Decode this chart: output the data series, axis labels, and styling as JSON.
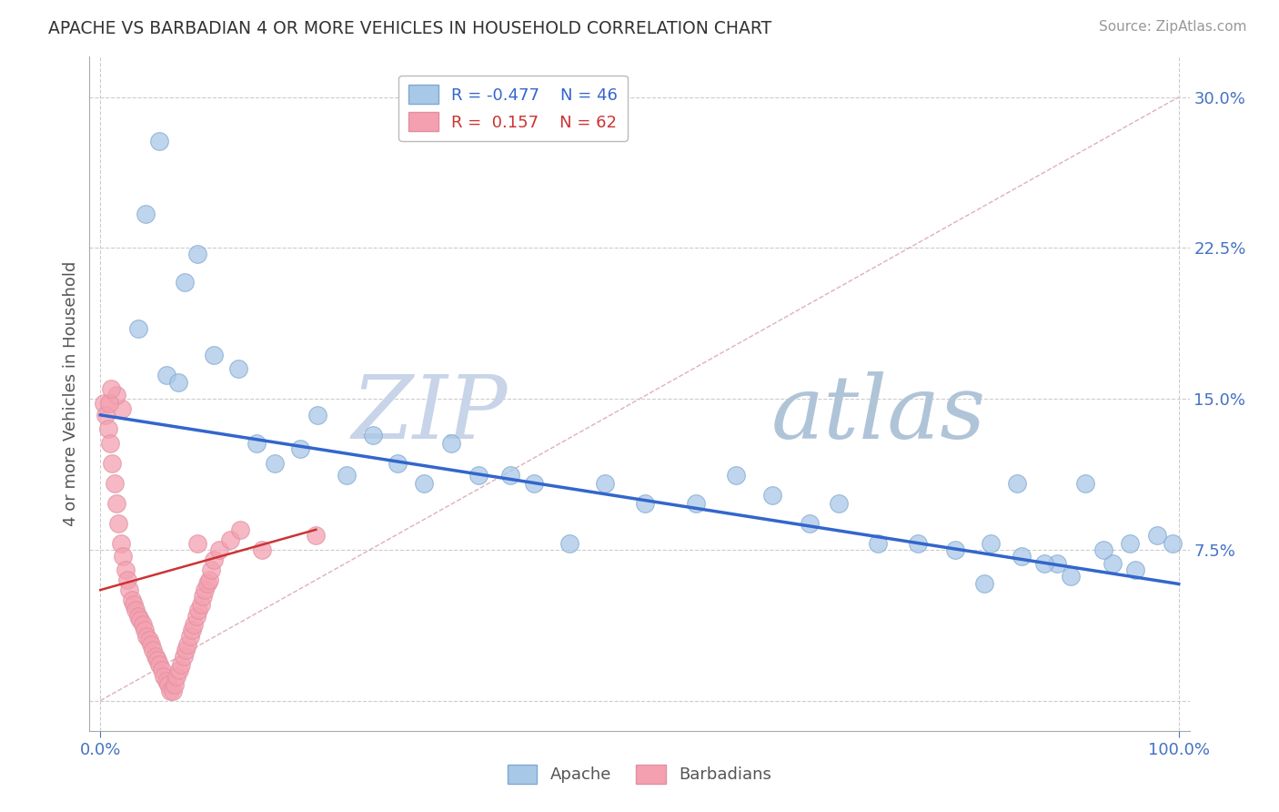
{
  "title": "APACHE VS BARBADIAN 4 OR MORE VEHICLES IN HOUSEHOLD CORRELATION CHART",
  "source": "Source: ZipAtlas.com",
  "ylabel": "4 or more Vehicles in Household",
  "xlim": [
    0,
    100
  ],
  "ylim": [
    0,
    32
  ],
  "yticks": [
    0,
    7.5,
    15.0,
    22.5,
    30.0
  ],
  "xticks": [
    0,
    100
  ],
  "xtick_labels": [
    "0.0%",
    "100.0%"
  ],
  "ytick_labels": [
    "",
    "7.5%",
    "15.0%",
    "22.5%",
    "30.0%"
  ],
  "apache_R": -0.477,
  "apache_N": 46,
  "barbadian_R": 0.157,
  "barbadian_N": 62,
  "apache_color": "#a8c8e8",
  "barbadian_color": "#f4a0b0",
  "apache_line_color": "#3366cc",
  "barbadian_line_color": "#cc3333",
  "background_color": "#ffffff",
  "grid_color": "#cccccc",
  "watermark_zip_color": "#c8d4e8",
  "watermark_atlas_color": "#b8c8d8",
  "apache_x": [
    5.5,
    4.2,
    7.8,
    9.0,
    3.5,
    6.1,
    7.2,
    10.5,
    12.8,
    14.5,
    16.2,
    18.5,
    20.1,
    22.8,
    25.3,
    27.6,
    30.0,
    32.5,
    35.1,
    38.0,
    40.2,
    43.5,
    46.8,
    50.5,
    55.2,
    58.9,
    62.3,
    65.8,
    68.5,
    72.1,
    75.8,
    79.3,
    82.6,
    85.4,
    88.7,
    91.3,
    93.9,
    95.5,
    98.0,
    99.4,
    85.0,
    87.5,
    90.0,
    82.0,
    93.0,
    96.0
  ],
  "apache_y": [
    27.8,
    24.2,
    20.8,
    22.2,
    18.5,
    16.2,
    15.8,
    17.2,
    16.5,
    12.8,
    11.8,
    12.5,
    14.2,
    11.2,
    13.2,
    11.8,
    10.8,
    12.8,
    11.2,
    11.2,
    10.8,
    7.8,
    10.8,
    9.8,
    9.8,
    11.2,
    10.2,
    8.8,
    9.8,
    7.8,
    7.8,
    7.5,
    7.8,
    7.2,
    6.8,
    10.8,
    6.8,
    7.8,
    8.2,
    7.8,
    10.8,
    6.8,
    6.2,
    5.8,
    7.5,
    6.5
  ],
  "barbadian_x": [
    0.3,
    0.5,
    0.7,
    0.9,
    1.1,
    1.3,
    1.5,
    1.7,
    1.9,
    2.1,
    2.3,
    2.5,
    2.7,
    2.9,
    3.1,
    3.3,
    3.5,
    3.7,
    3.9,
    4.1,
    4.3,
    4.5,
    4.7,
    4.9,
    5.1,
    5.3,
    5.5,
    5.7,
    5.9,
    6.1,
    6.3,
    6.5,
    6.7,
    6.9,
    7.1,
    7.3,
    7.5,
    7.7,
    7.9,
    8.1,
    8.3,
    8.5,
    8.7,
    8.9,
    9.1,
    9.3,
    9.5,
    9.7,
    9.9,
    10.1,
    10.3,
    10.5,
    11.0,
    12.0,
    13.0,
    15.0,
    20.0,
    9.0,
    2.0,
    1.5,
    0.8,
    1.0
  ],
  "barbadian_y": [
    14.8,
    14.2,
    13.5,
    12.8,
    11.8,
    10.8,
    9.8,
    8.8,
    7.8,
    7.2,
    6.5,
    6.0,
    5.5,
    5.0,
    4.8,
    4.5,
    4.2,
    4.0,
    3.8,
    3.5,
    3.2,
    3.0,
    2.8,
    2.5,
    2.2,
    2.0,
    1.8,
    1.5,
    1.2,
    1.0,
    0.8,
    0.5,
    0.5,
    0.8,
    1.2,
    1.5,
    1.8,
    2.2,
    2.5,
    2.8,
    3.2,
    3.5,
    3.8,
    4.2,
    4.5,
    4.8,
    5.2,
    5.5,
    5.8,
    6.0,
    6.5,
    7.0,
    7.5,
    8.0,
    8.5,
    7.5,
    8.2,
    7.8,
    14.5,
    15.2,
    14.8,
    15.5
  ],
  "apache_trend_x0": 0,
  "apache_trend_x1": 100,
  "apache_trend_y0": 14.2,
  "apache_trend_y1": 5.8,
  "barbadian_trend_x0": 0,
  "barbadian_trend_x1": 20,
  "barbadian_trend_y0": 5.5,
  "barbadian_trend_y1": 8.5
}
